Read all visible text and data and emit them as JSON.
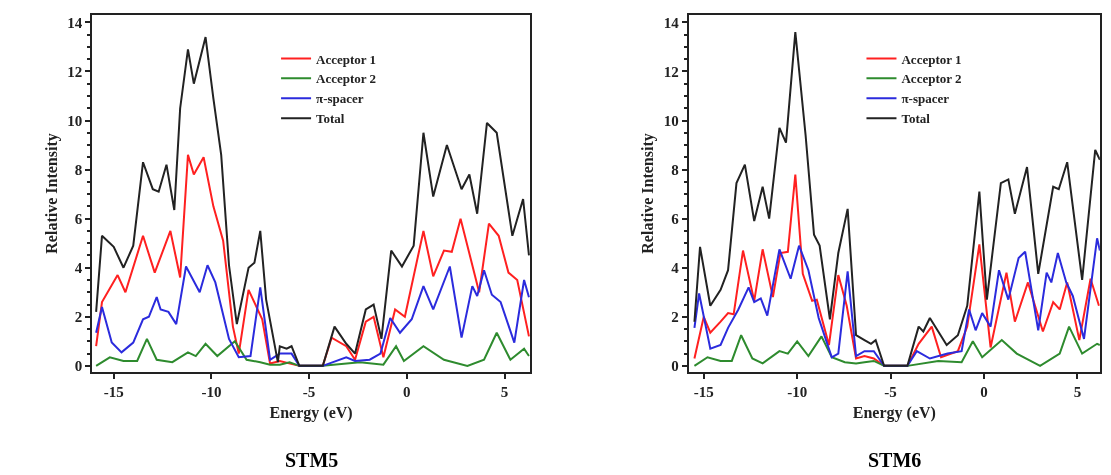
{
  "chart_data": [
    {
      "type": "line",
      "title": "STM5",
      "xlabel": "Energy (eV)",
      "ylabel": "Relative Intensity",
      "xlim": [
        -16.1,
        6.3
      ],
      "ylim": [
        -0.25,
        14.3
      ],
      "xticks": [
        -15,
        -10,
        -5,
        0,
        5
      ],
      "yticks": [
        0,
        2,
        4,
        6,
        8,
        10,
        12,
        14
      ],
      "legend": "top",
      "marker": "none",
      "line_style": "solid",
      "series": [
        {
          "name": "Acceptor 1",
          "color": "#ff2020",
          "x": [
            -15.9,
            -15.6,
            -14.8,
            -14.4,
            -13.5,
            -12.9,
            -12.1,
            -11.6,
            -11.2,
            -10.9,
            -10.4,
            -9.9,
            -9.4,
            -8.9,
            -8.6,
            -8.1,
            -7.4,
            -7.0,
            -6.5,
            -5.5,
            -4.3,
            -3.85,
            -3.1,
            -2.65,
            -2.1,
            -1.7,
            -1.2,
            -0.6,
            -0.1,
            0.85,
            1.35,
            1.9,
            2.3,
            2.75,
            3.7,
            4.2,
            4.7,
            5.2,
            5.65,
            6.25
          ],
          "values": [
            0.8,
            2.6,
            3.7,
            3.0,
            5.3,
            3.8,
            5.5,
            3.6,
            8.6,
            7.8,
            8.5,
            6.5,
            5.1,
            1.6,
            0.5,
            3.1,
            1.9,
            0.1,
            0.2,
            0,
            0,
            1.15,
            0.8,
            0.25,
            1.8,
            2.0,
            0.35,
            2.3,
            2.0,
            5.5,
            3.65,
            4.7,
            4.65,
            6.0,
            3.0,
            5.8,
            5.3,
            3.8,
            3.5,
            1.2
          ]
        },
        {
          "name": "Acceptor 2",
          "color": "#2e8b2e",
          "x": [
            -15.9,
            -15.2,
            -14.5,
            -13.8,
            -13.3,
            -12.8,
            -12.0,
            -11.2,
            -10.8,
            -10.3,
            -9.7,
            -8.8,
            -8.2,
            -7.5,
            -7.0,
            -6.5,
            -6.0,
            -5.5,
            -4.3,
            -2.4,
            -1.2,
            -0.55,
            -0.15,
            0.85,
            1.9,
            3.1,
            3.95,
            4.6,
            5.3,
            6.0,
            6.25
          ],
          "values": [
            0,
            0.35,
            0.2,
            0.2,
            1.1,
            0.25,
            0.15,
            0.55,
            0.4,
            0.9,
            0.4,
            1.0,
            0.25,
            0.15,
            0.05,
            0.05,
            0.15,
            0,
            0,
            0.15,
            0.05,
            0.8,
            0.2,
            0.8,
            0.25,
            0,
            0.25,
            1.35,
            0.25,
            0.7,
            0.4
          ]
        },
        {
          "name": "π-spacer",
          "color": "#2b2bdd",
          "x": [
            -15.9,
            -15.6,
            -15.1,
            -14.6,
            -14.0,
            -13.5,
            -13.2,
            -12.8,
            -12.6,
            -12.2,
            -11.8,
            -11.3,
            -10.6,
            -10.2,
            -9.8,
            -9.1,
            -8.6,
            -8.0,
            -7.5,
            -7.0,
            -6.5,
            -5.9,
            -5.5,
            -4.3,
            -3.1,
            -2.65,
            -1.9,
            -1.35,
            -0.85,
            -0.35,
            0.25,
            0.85,
            1.35,
            2.2,
            2.8,
            3.35,
            3.6,
            3.95,
            4.35,
            4.8,
            5.5,
            6.0,
            6.25
          ],
          "values": [
            1.35,
            2.4,
            0.95,
            0.55,
            0.95,
            1.9,
            2.0,
            2.8,
            2.3,
            2.2,
            1.7,
            4.05,
            3.0,
            4.1,
            3.4,
            1.1,
            0.35,
            0.4,
            3.2,
            0.25,
            0.5,
            0.5,
            0,
            0,
            0.35,
            0.2,
            0.25,
            0.5,
            1.95,
            1.35,
            1.9,
            3.25,
            2.3,
            4.05,
            1.15,
            3.25,
            2.85,
            3.9,
            2.9,
            2.6,
            0.95,
            3.5,
            2.8
          ]
        },
        {
          "name": "Total",
          "color": "#222222",
          "x": [
            -15.9,
            -15.6,
            -15.0,
            -14.5,
            -14.0,
            -13.5,
            -13.0,
            -12.7,
            -12.3,
            -11.9,
            -11.6,
            -11.2,
            -10.9,
            -10.3,
            -9.9,
            -9.5,
            -9.1,
            -8.7,
            -8.1,
            -7.8,
            -7.5,
            -7.2,
            -6.6,
            -6.5,
            -6.15,
            -5.9,
            -5.5,
            -4.3,
            -3.7,
            -3.1,
            -2.65,
            -2.1,
            -1.7,
            -1.3,
            -0.8,
            -0.25,
            0.35,
            0.85,
            1.35,
            2.05,
            2.8,
            3.2,
            3.6,
            4.1,
            4.6,
            5.4,
            5.95,
            6.25
          ],
          "values": [
            2.2,
            5.3,
            4.85,
            4.0,
            4.9,
            8.3,
            7.2,
            7.1,
            8.2,
            6.35,
            10.5,
            12.9,
            11.5,
            13.4,
            10.9,
            8.6,
            4.1,
            1.7,
            4.0,
            4.2,
            5.5,
            2.7,
            0.15,
            0.8,
            0.7,
            0.8,
            0,
            0,
            1.6,
            0.9,
            0.5,
            2.3,
            2.5,
            1.1,
            4.7,
            4.05,
            4.9,
            9.5,
            6.9,
            9.0,
            7.2,
            7.8,
            6.2,
            9.9,
            9.5,
            5.3,
            6.8,
            4.5
          ]
        }
      ]
    },
    {
      "type": "line",
      "title": "STM6",
      "xlabel": "Energy (eV)",
      "ylabel": "Relative Intensity",
      "xlim": [
        -15.8,
        6.2
      ],
      "ylim": [
        -0.25,
        14.3
      ],
      "xticks": [
        -15,
        -10,
        -5,
        0,
        5
      ],
      "yticks": [
        0,
        2,
        4,
        6,
        8,
        10,
        12,
        14
      ],
      "legend": "top",
      "marker": "none",
      "line_style": "solid",
      "series": [
        {
          "name": "Acceptor 1",
          "color": "#ff2020",
          "x": [
            -15.5,
            -15.0,
            -14.65,
            -14.1,
            -13.7,
            -13.4,
            -12.9,
            -12.3,
            -11.85,
            -11.3,
            -10.9,
            -10.5,
            -10.1,
            -9.7,
            -9.2,
            -8.95,
            -8.3,
            -7.8,
            -7.35,
            -6.85,
            -6.4,
            -5.9,
            -5.35,
            -4.1,
            -3.5,
            -2.8,
            -2.3,
            -1.4,
            -0.9,
            -0.25,
            0.35,
            1.2,
            1.65,
            2.35,
            3.15,
            3.7,
            4.05,
            4.45,
            5.1,
            5.7,
            6.15
          ],
          "values": [
            0.3,
            2.0,
            1.35,
            1.8,
            2.15,
            2.1,
            4.7,
            2.65,
            4.75,
            2.8,
            4.6,
            4.65,
            7.8,
            3.75,
            2.65,
            2.7,
            0.85,
            3.7,
            2.45,
            0.3,
            0.4,
            0.3,
            0,
            0,
            0.9,
            1.6,
            0.35,
            0.6,
            1.6,
            4.95,
            0.75,
            3.8,
            1.8,
            3.4,
            1.4,
            2.6,
            2.3,
            3.4,
            1.05,
            3.55,
            2.45
          ]
        },
        {
          "name": "Acceptor 2",
          "color": "#2e8b2e",
          "x": [
            -15.5,
            -14.8,
            -14.1,
            -13.5,
            -13.0,
            -12.4,
            -11.85,
            -10.95,
            -10.5,
            -10.0,
            -9.4,
            -8.7,
            -8.15,
            -7.45,
            -6.85,
            -6.4,
            -5.9,
            -5.35,
            -4.1,
            -2.45,
            -1.2,
            -0.6,
            -0.1,
            0.95,
            1.75,
            3.0,
            4.05,
            4.55,
            5.25,
            6.05,
            6.2
          ],
          "values": [
            0,
            0.35,
            0.2,
            0.2,
            1.25,
            0.3,
            0.1,
            0.6,
            0.5,
            1.0,
            0.4,
            1.2,
            0.35,
            0.15,
            0.1,
            0.15,
            0.2,
            0,
            0,
            0.2,
            0.15,
            1.0,
            0.35,
            1.05,
            0.5,
            0,
            0.5,
            1.6,
            0.5,
            0.9,
            0.85
          ]
        },
        {
          "name": "π-spacer",
          "color": "#2b2bdd",
          "x": [
            -15.5,
            -15.25,
            -14.65,
            -14.1,
            -13.7,
            -13.15,
            -12.6,
            -12.3,
            -11.95,
            -11.6,
            -10.95,
            -10.35,
            -9.9,
            -9.4,
            -8.85,
            -8.15,
            -7.8,
            -7.3,
            -6.85,
            -6.4,
            -5.9,
            -5.35,
            -4.1,
            -3.6,
            -2.9,
            -1.95,
            -1.2,
            -0.8,
            -0.45,
            -0.1,
            0.35,
            0.8,
            1.3,
            1.85,
            2.2,
            2.9,
            3.35,
            3.6,
            3.95,
            4.4,
            4.75,
            5.35,
            6.05,
            6.2
          ],
          "values": [
            1.55,
            2.95,
            0.7,
            0.85,
            1.55,
            2.3,
            3.2,
            2.6,
            2.75,
            2.05,
            4.75,
            3.55,
            4.9,
            3.9,
            1.95,
            0.35,
            0.5,
            3.85,
            0.4,
            0.6,
            0.6,
            0,
            0,
            0.6,
            0.3,
            0.5,
            0.6,
            2.3,
            1.45,
            2.15,
            1.6,
            3.9,
            2.7,
            4.4,
            4.65,
            1.45,
            3.8,
            3.4,
            4.6,
            3.4,
            2.85,
            1.1,
            5.2,
            4.7
          ]
        },
        {
          "name": "Total",
          "color": "#222222",
          "x": [
            -15.5,
            -15.2,
            -14.65,
            -14.1,
            -13.7,
            -13.25,
            -12.8,
            -12.3,
            -11.85,
            -11.5,
            -10.95,
            -10.6,
            -10.1,
            -9.55,
            -9.1,
            -8.8,
            -8.25,
            -7.8,
            -7.3,
            -6.85,
            -6.4,
            -6.05,
            -5.8,
            -5.35,
            -4.1,
            -3.5,
            -3.25,
            -2.9,
            -2.0,
            -1.4,
            -0.9,
            -0.25,
            0.15,
            0.9,
            1.3,
            1.65,
            2.3,
            2.9,
            3.7,
            4.0,
            4.45,
            5.25,
            5.95,
            6.2
          ],
          "values": [
            1.8,
            4.85,
            2.45,
            3.1,
            3.9,
            7.45,
            8.2,
            5.9,
            7.3,
            6.0,
            9.7,
            9.1,
            13.6,
            9.4,
            5.35,
            4.9,
            1.9,
            4.6,
            6.4,
            1.25,
            1.05,
            0.9,
            1.05,
            0,
            0,
            1.6,
            1.4,
            1.95,
            0.85,
            1.25,
            2.45,
            7.1,
            2.7,
            7.45,
            7.6,
            6.2,
            8.1,
            3.75,
            7.3,
            7.2,
            8.3,
            3.5,
            8.8,
            8.4
          ]
        }
      ]
    }
  ]
}
